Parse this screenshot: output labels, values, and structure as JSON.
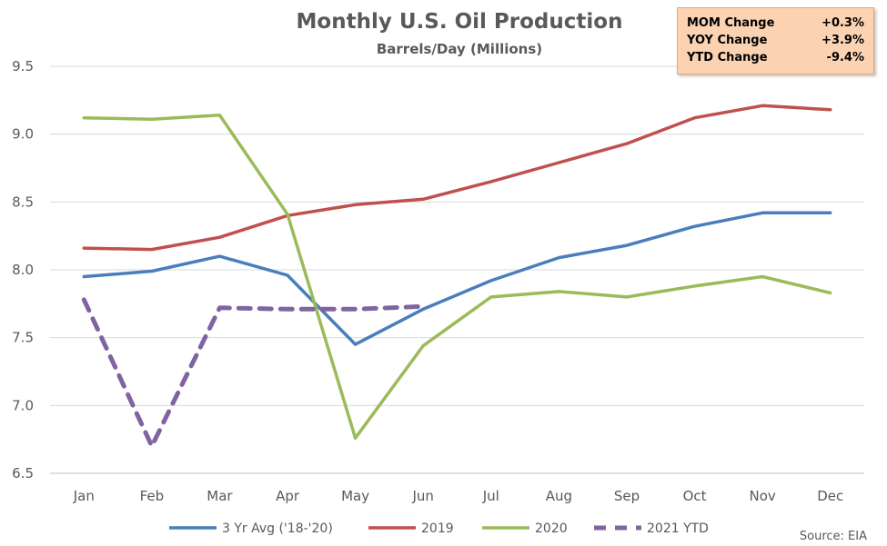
{
  "chart_data": {
    "type": "line",
    "title": "Monthly U.S. Oil Production",
    "subtitle": "Barrels/Day (Millions)",
    "categories": [
      "Jan",
      "Feb",
      "Mar",
      "Apr",
      "May",
      "Jun",
      "Jul",
      "Aug",
      "Sep",
      "Oct",
      "Nov",
      "Dec"
    ],
    "ylim": [
      6.5,
      9.5
    ],
    "yticks": [
      "6.5",
      "7.0",
      "7.5",
      "8.0",
      "8.5",
      "9.0",
      "9.5"
    ],
    "grid": true,
    "legend_position": "bottom",
    "series": [
      {
        "name": "3 Yr Avg ('18-'20)",
        "color": "#4a7ebb",
        "dash": false,
        "values": [
          7.95,
          7.99,
          8.1,
          7.96,
          7.45,
          7.71,
          7.92,
          8.09,
          8.18,
          8.32,
          8.42,
          8.42
        ]
      },
      {
        "name": "2019",
        "color": "#c0504d",
        "dash": false,
        "values": [
          8.16,
          8.15,
          8.24,
          8.4,
          8.48,
          8.52,
          8.65,
          8.79,
          8.93,
          9.12,
          9.21,
          9.18
        ]
      },
      {
        "name": "2020",
        "color": "#9bbb59",
        "dash": false,
        "values": [
          9.12,
          9.11,
          9.14,
          8.41,
          6.76,
          7.44,
          7.8,
          7.84,
          7.8,
          7.88,
          7.95,
          7.83
        ]
      },
      {
        "name": "2021 YTD",
        "color": "#8064a2",
        "dash": true,
        "values": [
          7.78,
          6.7,
          7.72,
          7.71,
          7.71,
          7.73,
          null,
          null,
          null,
          null,
          null,
          null
        ]
      }
    ]
  },
  "stats": [
    {
      "label": "MOM Change",
      "value": "+0.3%"
    },
    {
      "label": "YOY Change",
      "value": "+3.9%"
    },
    {
      "label": "YTD Change",
      "value": "-9.4%"
    }
  ],
  "source": "Source: EIA"
}
